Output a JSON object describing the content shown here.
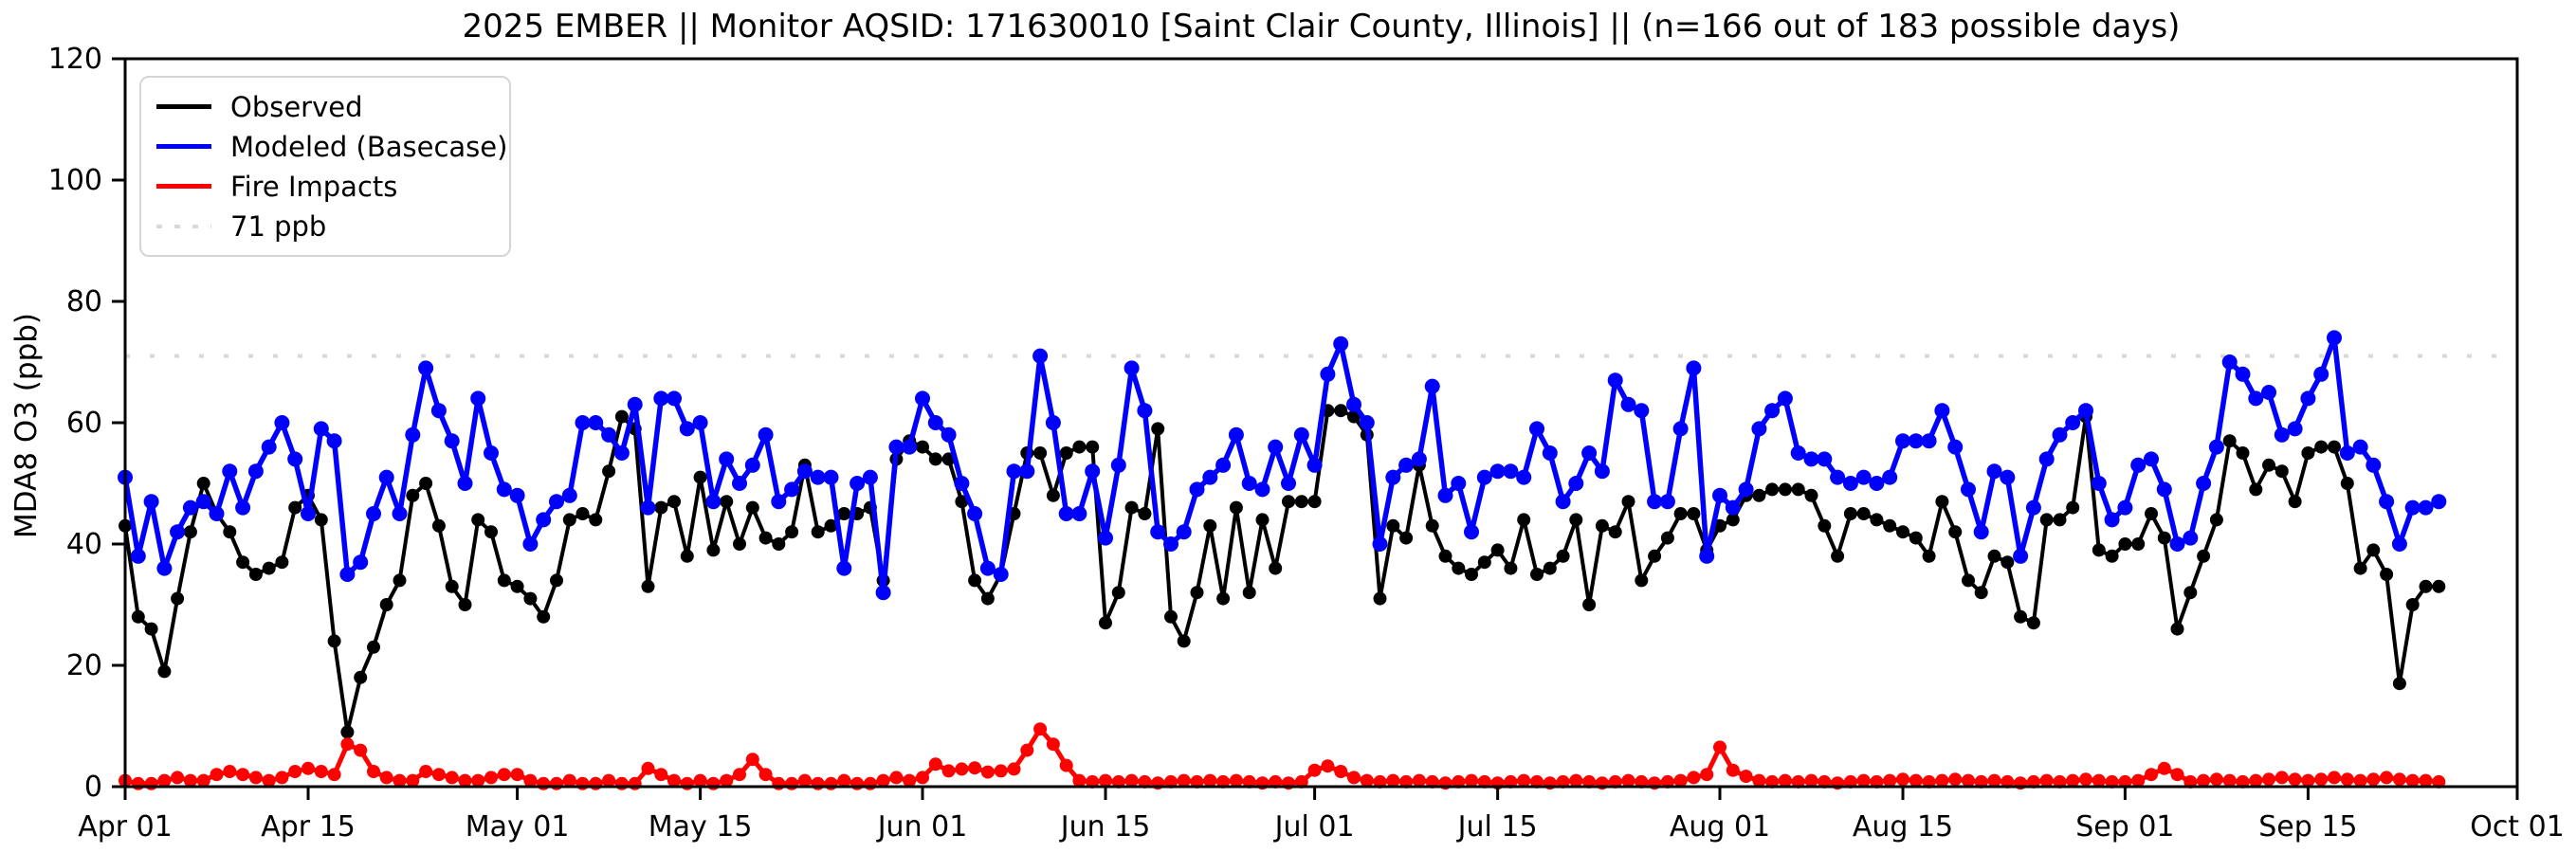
{
  "header": {
    "title": "2025 EMBER || Monitor AQSID: 171630010 [Saint Clair County, Illinois] || (n=166 out of 183 possible days)"
  },
  "axes": {
    "ylabel": "MDA8 O3 (ppb)",
    "ylim": [
      0,
      120
    ],
    "yticks": [
      0,
      20,
      40,
      60,
      80,
      100,
      120
    ],
    "xlim_days": [
      0,
      183
    ],
    "xticks": [
      {
        "day": 0,
        "label": "Apr 01"
      },
      {
        "day": 14,
        "label": "Apr 15"
      },
      {
        "day": 30,
        "label": "May 01"
      },
      {
        "day": 44,
        "label": "May 15"
      },
      {
        "day": 61,
        "label": "Jun 01"
      },
      {
        "day": 75,
        "label": "Jun 15"
      },
      {
        "day": 91,
        "label": "Jul 01"
      },
      {
        "day": 105,
        "label": "Jul 15"
      },
      {
        "day": 122,
        "label": "Aug 01"
      },
      {
        "day": 136,
        "label": "Aug 15"
      },
      {
        "day": 153,
        "label": "Sep 01"
      },
      {
        "day": 167,
        "label": "Sep 15"
      },
      {
        "day": 183,
        "label": "Oct 01"
      }
    ]
  },
  "legend": {
    "items": [
      {
        "label": "Observed",
        "color": "#000000",
        "style": "solid"
      },
      {
        "label": "Modeled (Basecase)",
        "color": "#0000ff",
        "style": "solid"
      },
      {
        "label": "Fire Impacts",
        "color": "#ff0000",
        "style": "solid"
      },
      {
        "label": "71 ppb",
        "color": "#d9d9d9",
        "style": "dotted"
      }
    ]
  },
  "chart_data": {
    "type": "line",
    "title": "2025 EMBER || Monitor AQSID: 171630010 [Saint Clair County, Illinois] || (n=166 out of 183 possible days)",
    "xlabel": "",
    "ylabel": "MDA8 O3 (ppb)",
    "ylim": [
      0,
      120
    ],
    "grid": false,
    "legend_position": "upper left",
    "threshold_ppb": 71,
    "threshold_color": "#d9d9d9",
    "x_unit": "day",
    "x_start": "Apr 01",
    "n_days": 178,
    "note": "daily values Apr 01 through Sep 25; estimated from plot",
    "series": [
      {
        "name": "Observed",
        "color": "#000000",
        "line_width": 4,
        "marker_radius": 7,
        "values": [
          43,
          28,
          26,
          19,
          31,
          42,
          50,
          45,
          42,
          37,
          35,
          36,
          37,
          46,
          48,
          44,
          24,
          9,
          18,
          23,
          30,
          34,
          48,
          50,
          43,
          33,
          30,
          44,
          42,
          34,
          33,
          31,
          28,
          34,
          44,
          45,
          44,
          52,
          61,
          59,
          33,
          46,
          47,
          38,
          51,
          39,
          47,
          40,
          46,
          41,
          40,
          42,
          53,
          42,
          43,
          45,
          45,
          46,
          34,
          54,
          57,
          56,
          54,
          54,
          47,
          34,
          31,
          35,
          45,
          55,
          55,
          48,
          55,
          56,
          56,
          27,
          32,
          46,
          45,
          59,
          28,
          24,
          32,
          43,
          31,
          46,
          32,
          44,
          36,
          47,
          47,
          47,
          62,
          62,
          61,
          58,
          31,
          43,
          41,
          53,
          43,
          38,
          36,
          35,
          37,
          39,
          36,
          44,
          35,
          36,
          38,
          44,
          30,
          43,
          42,
          47,
          34,
          38,
          41,
          45,
          45,
          39,
          43,
          44,
          48,
          48,
          49,
          49,
          49,
          48,
          43,
          38,
          45,
          45,
          44,
          43,
          42,
          41,
          38,
          47,
          42,
          34,
          32,
          38,
          37,
          28,
          27,
          44,
          44,
          46,
          61,
          39,
          38,
          40,
          40,
          45,
          41,
          26,
          32,
          38,
          44,
          57,
          55,
          49,
          53,
          52,
          47,
          55,
          56,
          56,
          50,
          36,
          39,
          35,
          17,
          30,
          33,
          33
        ]
      },
      {
        "name": "Modeled (Basecase)",
        "color": "#0000ff",
        "line_width": 5.5,
        "marker_radius": 8,
        "values": [
          51,
          38,
          47,
          36,
          42,
          46,
          47,
          45,
          52,
          46,
          52,
          56,
          60,
          54,
          45,
          59,
          57,
          35,
          37,
          45,
          51,
          45,
          58,
          69,
          62,
          57,
          50,
          64,
          55,
          49,
          48,
          40,
          44,
          47,
          48,
          60,
          60,
          58,
          55,
          63,
          46,
          64,
          64,
          59,
          60,
          47,
          54,
          50,
          53,
          58,
          47,
          49,
          52,
          51,
          51,
          36,
          50,
          51,
          32,
          56,
          56,
          64,
          60,
          58,
          50,
          45,
          36,
          35,
          52,
          52,
          71,
          60,
          45,
          45,
          52,
          41,
          53,
          69,
          62,
          42,
          40,
          42,
          49,
          51,
          53,
          58,
          50,
          49,
          56,
          50,
          58,
          53,
          68,
          73,
          63,
          60,
          40,
          51,
          53,
          54,
          66,
          48,
          50,
          42,
          51,
          52,
          52,
          51,
          59,
          55,
          47,
          50,
          55,
          52,
          67,
          63,
          62,
          47,
          47,
          59,
          69,
          38,
          48,
          46,
          49,
          59,
          62,
          64,
          55,
          54,
          54,
          51,
          50,
          51,
          50,
          51,
          57,
          57,
          57,
          62,
          56,
          49,
          42,
          52,
          51,
          38,
          46,
          54,
          58,
          60,
          62,
          50,
          44,
          46,
          53,
          54,
          49,
          40,
          41,
          50,
          56,
          70,
          68,
          64,
          65,
          58,
          59,
          64,
          68,
          74,
          55,
          56,
          53,
          47,
          40,
          46,
          46,
          47
        ]
      },
      {
        "name": "Fire Impacts",
        "color": "#ff0000",
        "line_width": 5,
        "marker_radius": 7,
        "values": [
          1,
          0.5,
          0.5,
          1,
          1.5,
          1,
          1,
          2,
          2.5,
          2,
          1.5,
          1,
          1.5,
          2.5,
          3,
          2.5,
          2,
          7,
          6,
          2.5,
          1.5,
          1,
          1,
          2.5,
          2,
          1.5,
          1,
          1,
          1.5,
          2,
          2,
          1,
          0.5,
          0.5,
          1,
          0.5,
          0.5,
          1,
          0.5,
          0.5,
          3,
          2,
          1,
          0.5,
          1,
          0.5,
          1,
          2,
          4.5,
          2,
          0.5,
          0.5,
          1,
          0.5,
          0.5,
          1,
          0.5,
          0.5,
          1,
          1.5,
          1,
          1.5,
          3.7,
          2.6,
          2.9,
          3.1,
          2.4,
          2.6,
          2.9,
          6,
          9.5,
          7,
          3.5,
          1,
          0.8,
          1,
          0.8,
          1,
          0.8,
          0.6,
          0.8,
          1,
          0.8,
          1,
          0.8,
          1,
          0.8,
          0.6,
          0.8,
          0.6,
          0.8,
          2.7,
          3.4,
          2.5,
          1.5,
          1,
          0.8,
          1,
          0.8,
          1,
          0.8,
          0.6,
          0.8,
          1,
          0.8,
          0.6,
          0.8,
          1,
          0.8,
          0.6,
          0.8,
          1,
          0.8,
          0.6,
          0.8,
          1,
          0.8,
          0.6,
          0.8,
          1,
          1.5,
          2,
          6.5,
          2.7,
          1.7,
          1,
          0.8,
          1,
          0.8,
          1,
          0.8,
          0.6,
          0.8,
          1,
          0.8,
          1,
          1.2,
          1,
          0.8,
          1,
          1.2,
          1,
          0.8,
          1,
          0.8,
          0.6,
          0.8,
          1,
          0.8,
          1,
          1.2,
          1,
          0.8,
          0.8,
          1,
          2,
          3,
          2,
          0.8,
          1,
          1.2,
          1,
          0.8,
          1,
          1.2,
          1.5,
          1.2,
          1,
          1.2,
          1.5,
          1.2,
          1,
          1.2,
          1.5,
          1.2,
          1,
          1,
          0.8
        ]
      }
    ]
  }
}
